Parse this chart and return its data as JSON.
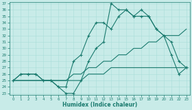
{
  "x": [
    0,
    1,
    2,
    3,
    4,
    5,
    6,
    7,
    8,
    9,
    10,
    11,
    12,
    13,
    14,
    15,
    16,
    17,
    18,
    19,
    20,
    21,
    22,
    23
  ],
  "s1_marked": [
    25,
    26,
    26,
    26,
    25,
    25,
    24,
    24,
    28,
    29,
    32,
    34,
    34,
    33,
    35,
    36,
    35,
    36,
    35,
    33,
    32,
    31,
    28,
    27
  ],
  "s2_marked": [
    25,
    26,
    26,
    26,
    25,
    25,
    24,
    23,
    23,
    25,
    28,
    30,
    31,
    37,
    36,
    36,
    35,
    35,
    35,
    33,
    32,
    29,
    26,
    27
  ],
  "s3_line": [
    25,
    25,
    25,
    25,
    25,
    25,
    25,
    25,
    26,
    26,
    27,
    27,
    28,
    28,
    29,
    29,
    30,
    30,
    31,
    31,
    32,
    32,
    32,
    33
  ],
  "s4_line": [
    25,
    25,
    25,
    25,
    25,
    25,
    25,
    25,
    25,
    25,
    26,
    26,
    26,
    27,
    27,
    27,
    27,
    27,
    27,
    27,
    27,
    27,
    27,
    27
  ],
  "line_color": "#1a7a6e",
  "bg_color": "#c8ebe8",
  "grid_color": "#a8ddd8",
  "xlabel": "Humidex (Indice chaleur)",
  "xlim": [
    -0.5,
    23.5
  ],
  "ylim": [
    23,
    37
  ],
  "yticks": [
    23,
    24,
    25,
    26,
    27,
    28,
    29,
    30,
    31,
    32,
    33,
    34,
    35,
    36,
    37
  ],
  "xticks": [
    0,
    1,
    2,
    3,
    4,
    5,
    6,
    7,
    8,
    9,
    10,
    11,
    12,
    13,
    14,
    15,
    16,
    17,
    18,
    19,
    20,
    21,
    22,
    23
  ]
}
